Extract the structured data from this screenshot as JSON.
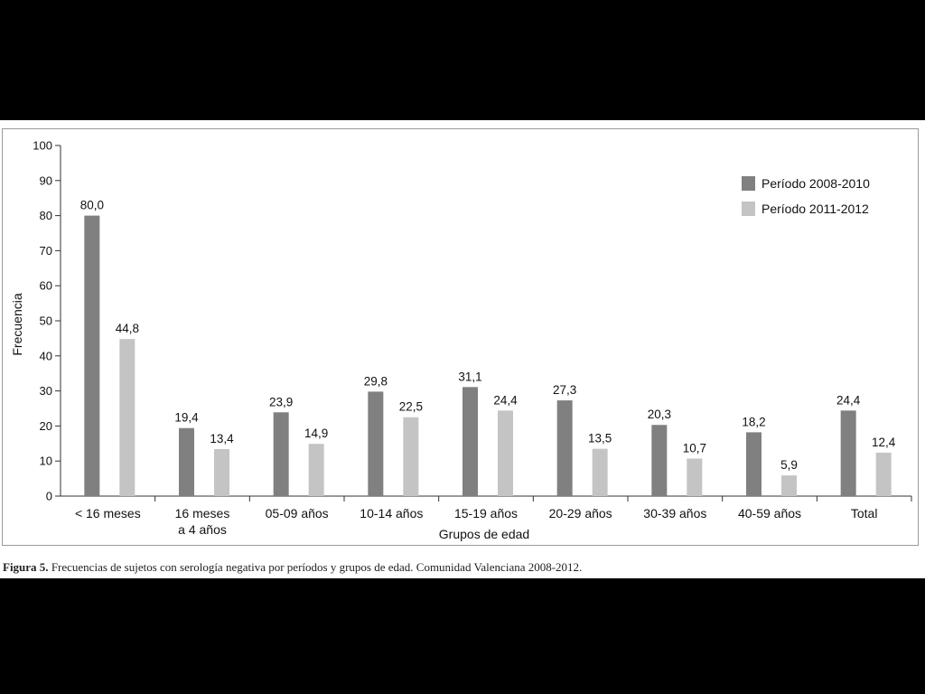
{
  "colors": {
    "background": "#000000",
    "series_2008_2010": "#808080",
    "series_2011_2012": "#c4c4c4",
    "axis": "#333333"
  },
  "caption": {
    "label": "Figura 5.",
    "text": " Frecuencias de sujetos con serología negativa por períodos y grupos de edad. Comunidad Valenciana 2008-2012."
  },
  "chart_data": {
    "type": "bar",
    "xlabel": "Grupos de edad",
    "ylabel": "Frecuencia",
    "ylim": [
      0,
      100
    ],
    "yticks": [
      0,
      10,
      20,
      30,
      40,
      50,
      60,
      70,
      80,
      90,
      100
    ],
    "legend_position": "top-right",
    "grid": false,
    "categories": [
      [
        "< 16 meses"
      ],
      [
        "16 meses",
        "a 4 años"
      ],
      [
        "05-09 años"
      ],
      [
        "10-14 años"
      ],
      [
        "15-19 años"
      ],
      [
        "20-29 años"
      ],
      [
        "30-39 años"
      ],
      [
        "40-59 años"
      ],
      [
        "Total"
      ]
    ],
    "series": [
      {
        "name": "Período 2008-2010",
        "color": "#808080",
        "values": [
          80.0,
          19.4,
          23.9,
          29.8,
          31.1,
          27.3,
          20.3,
          18.2,
          24.4
        ],
        "labels": [
          "80,0",
          "19,4",
          "23,9",
          "29,8",
          "31,1",
          "27,3",
          "20,3",
          "18,2",
          "24,4"
        ]
      },
      {
        "name": "Período 2011-2012",
        "color": "#c4c4c4",
        "values": [
          44.8,
          13.4,
          14.9,
          22.5,
          24.4,
          13.5,
          10.7,
          5.9,
          12.4
        ],
        "labels": [
          "44,8",
          "13,4",
          "14,9",
          "22,5",
          "24,4",
          "13,5",
          "10,7",
          "5,9",
          "12,4"
        ]
      }
    ]
  }
}
